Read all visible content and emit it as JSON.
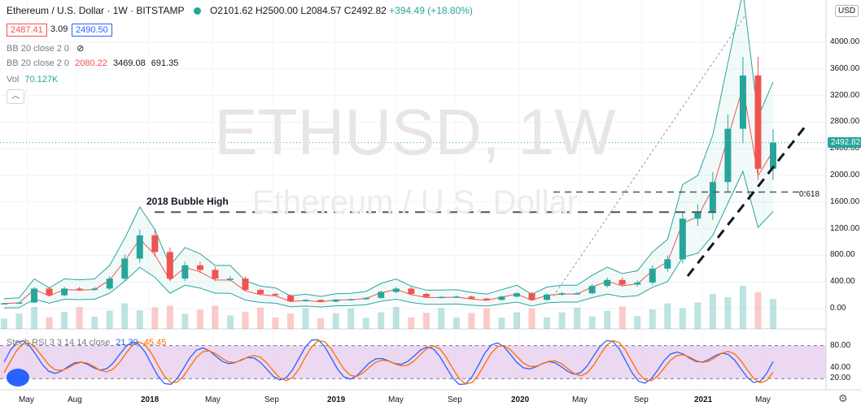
{
  "header": {
    "symbol": "Ethereum / U.S. Dollar · 1W · BITSTAMP",
    "ohlc": "O2101.62 H2500.00 L2084.57 C2492.82",
    "change": "+394.49 (+18.80%)"
  },
  "trade": {
    "sell": "2487.41",
    "spread": "3.09",
    "buy": "2490.50"
  },
  "indicators": {
    "bb1_label": "BB 20 close 2 0",
    "bb2_label": "BB 20 close 2 0",
    "bb2_basis": "2080.22",
    "bb2_upper": "3469.08",
    "bb2_lower": "691.35",
    "vol_label": "Vol",
    "vol_value": "70.127K"
  },
  "collapse_icon": "chevron-up-icon",
  "currency": "USD",
  "price_tag": "2492.82",
  "watermark": {
    "symbol": "ETHUSD, 1W",
    "name": "Ethereum / U.S. Dollar"
  },
  "annotations": {
    "bubble": "2018 Bubble High",
    "fib": "0.618"
  },
  "stoch": {
    "label": "Stoch RSI 3 3 14 14 close",
    "k": "21.39",
    "d": "45.45"
  },
  "colors": {
    "up": "#26a69a",
    "down": "#ef5350",
    "stoch_k": "#2962ff",
    "stoch_d": "#ff6d00",
    "band": "#e1bee7"
  },
  "chart_data": {
    "type": "candlestick",
    "title": "Ethereum / U.S. Dollar · 1W · BITSTAMP",
    "ylim": [
      0,
      4400
    ],
    "y_ticks": [
      "4000.00",
      "3600.00",
      "3200.00",
      "2800.00",
      "2400.00",
      "2000.00",
      "1600.00",
      "1200.00",
      "800.00",
      "400.00",
      "0.00"
    ],
    "x_ticks": [
      "May",
      "Aug",
      "2018",
      "May",
      "Sep",
      "2019",
      "May",
      "Sep",
      "2020",
      "May",
      "Sep",
      "2021",
      "May"
    ],
    "bold_x_ticks": [
      "2018",
      "2019",
      "2020",
      "2021"
    ],
    "close_series": [
      [
        "2017-04",
        80
      ],
      [
        "2017-05",
        90
      ],
      [
        "2017-06",
        300
      ],
      [
        "2017-07",
        200
      ],
      [
        "2017-08",
        300
      ],
      [
        "2017-09",
        290
      ],
      [
        "2017-10",
        300
      ],
      [
        "2017-11",
        450
      ],
      [
        "2017-12",
        750
      ],
      [
        "2018-01",
        1100
      ],
      [
        "2018-02",
        850
      ],
      [
        "2018-03",
        450
      ],
      [
        "2018-04",
        650
      ],
      [
        "2018-05",
        580
      ],
      [
        "2018-06",
        450
      ],
      [
        "2018-07",
        450
      ],
      [
        "2018-08",
        280
      ],
      [
        "2018-09",
        220
      ],
      [
        "2018-10",
        200
      ],
      [
        "2018-11",
        110
      ],
      [
        "2018-12",
        130
      ],
      [
        "2019-01",
        105
      ],
      [
        "2019-02",
        135
      ],
      [
        "2019-03",
        140
      ],
      [
        "2019-04",
        160
      ],
      [
        "2019-05",
        250
      ],
      [
        "2019-06",
        300
      ],
      [
        "2019-07",
        220
      ],
      [
        "2019-08",
        175
      ],
      [
        "2019-09",
        175
      ],
      [
        "2019-10",
        180
      ],
      [
        "2019-11",
        150
      ],
      [
        "2019-12",
        130
      ],
      [
        "2020-01",
        180
      ],
      [
        "2020-02",
        230
      ],
      [
        "2020-03",
        130
      ],
      [
        "2020-04",
        210
      ],
      [
        "2020-05",
        230
      ],
      [
        "2020-06",
        230
      ],
      [
        "2020-07",
        340
      ],
      [
        "2020-08",
        430
      ],
      [
        "2020-09",
        360
      ],
      [
        "2020-10",
        390
      ],
      [
        "2020-11",
        600
      ],
      [
        "2020-12",
        740
      ],
      [
        "2021-01",
        1350
      ],
      [
        "2021-02",
        1450
      ],
      [
        "2021-03",
        1900
      ],
      [
        "2021-04",
        2700
      ],
      [
        "2021-05",
        3500
      ],
      [
        "2021-05b",
        2100
      ],
      [
        "2021-06",
        2492.82
      ]
    ],
    "levels": {
      "bubble_high": 1400,
      "fib_0618": 1750
    },
    "stoch_ylim": [
      0,
      100
    ],
    "stoch_ticks": [
      "80.00",
      "40.00",
      "20.00"
    ],
    "stoch_band": [
      20,
      80
    ]
  }
}
